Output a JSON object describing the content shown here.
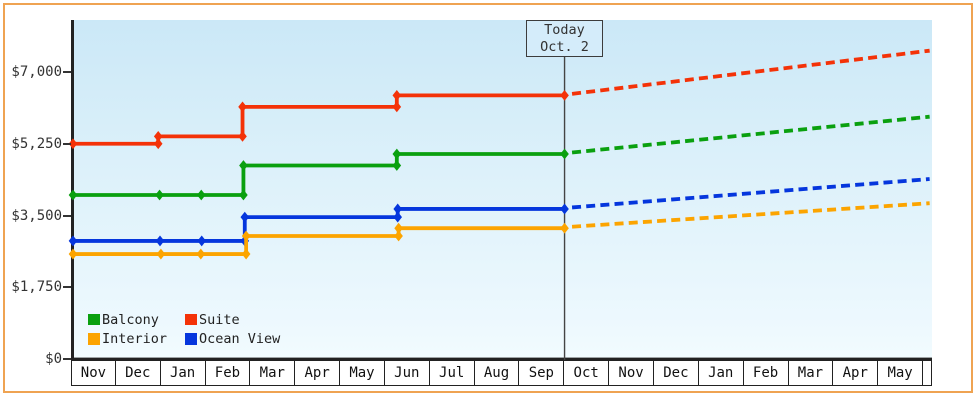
{
  "frame": {
    "border_color": "#efa352",
    "background": "#ffffff"
  },
  "plot": {
    "bg_gradient_top": "#cbe8f7",
    "bg_gradient_bottom": "#f2fcff",
    "axis_color": "#222222"
  },
  "today_box": {
    "line1": "Today",
    "line2": "Oct. 2"
  },
  "legend": [
    {
      "name": "Balcony",
      "color": "#0aa00f"
    },
    {
      "name": "Suite",
      "color": "#f43208"
    },
    {
      "name": "Interior",
      "color": "#fca400"
    },
    {
      "name": "Ocean View",
      "color": "#0536dd"
    }
  ],
  "chart_data": {
    "type": "line",
    "style": "step-after price history with diamond markers; dashed linear projection after today",
    "title": "",
    "y_axis": {
      "tick_labels": [
        "$0",
        "$1,750",
        "$3,500",
        "$5,250",
        "$7,000"
      ],
      "tick_values": [
        0,
        1750,
        3500,
        5250,
        7000
      ],
      "range": [
        0,
        7400
      ]
    },
    "x_axis": {
      "month_labels": [
        "Nov",
        "Dec",
        "Jan",
        "Feb",
        "Mar",
        "Apr",
        "May",
        "Jun",
        "Jul",
        "Aug",
        "Sep",
        "Oct",
        "Nov",
        "Dec",
        "Jan",
        "Feb",
        "Mar",
        "Apr",
        "May"
      ],
      "unit": "months from first Nov"
    },
    "today": {
      "month_offset": 10.96,
      "date_label": "Oct. 2"
    },
    "projection_end_month_offset": 19.1,
    "series": [
      {
        "name": "Suite",
        "color": "#f43208",
        "points": [
          [
            0,
            5250
          ],
          [
            1.9,
            5430
          ],
          [
            3.78,
            6150
          ],
          [
            7.22,
            6430
          ]
        ],
        "value_today": 6430,
        "projected_value": 7520
      },
      {
        "name": "Balcony",
        "color": "#0aa00f",
        "points": [
          [
            0,
            4000
          ],
          [
            1.93,
            4000
          ],
          [
            2.86,
            4000
          ],
          [
            3.8,
            4720
          ],
          [
            7.22,
            5000
          ]
        ],
        "value_today": 5000,
        "projected_value": 5910
      },
      {
        "name": "Ocean View",
        "color": "#0536dd",
        "points": [
          [
            0,
            2880
          ],
          [
            1.94,
            2880
          ],
          [
            2.87,
            2880
          ],
          [
            3.83,
            3460
          ],
          [
            7.24,
            3660
          ]
        ],
        "value_today": 3660,
        "projected_value": 4390
      },
      {
        "name": "Interior",
        "color": "#fca400",
        "points": [
          [
            0,
            2560
          ],
          [
            1.96,
            2560
          ],
          [
            2.85,
            2560
          ],
          [
            3.86,
            3000
          ],
          [
            7.26,
            3190
          ]
        ],
        "value_today": 3190,
        "projected_value": 3800
      }
    ]
  }
}
